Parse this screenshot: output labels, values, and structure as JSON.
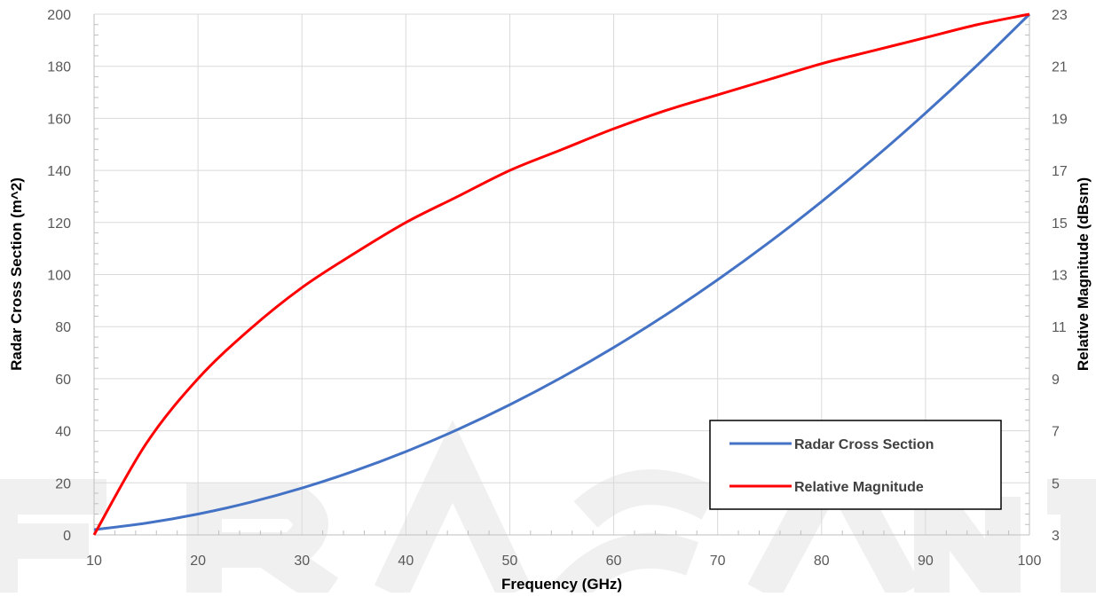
{
  "chart_data": {
    "type": "line",
    "xlabel": "Frequency (GHz)",
    "ylabel": "Radar Cross Section (m^2)",
    "y2label": "Relative Magnitude (dBsm)",
    "xlim": [
      10,
      100
    ],
    "ylim": [
      0,
      200
    ],
    "y2lim": [
      3,
      23
    ],
    "x_ticks": [
      10,
      20,
      30,
      40,
      50,
      60,
      70,
      80,
      90,
      100
    ],
    "y_ticks": [
      0,
      20,
      40,
      60,
      80,
      100,
      120,
      140,
      160,
      180,
      200
    ],
    "y2_ticks": [
      3,
      5,
      7,
      9,
      11,
      13,
      15,
      17,
      19,
      21,
      23
    ],
    "grid": true,
    "legend_position": "bottom-right",
    "x": [
      10,
      15,
      20,
      25,
      30,
      35,
      40,
      45,
      50,
      55,
      60,
      65,
      70,
      75,
      80,
      85,
      90,
      95,
      100
    ],
    "series": [
      {
        "name": "Radar Cross Section",
        "axis": "left",
        "color": "#4472c4",
        "values": [
          2,
          4.5,
          8,
          12.5,
          18,
          24.5,
          32,
          40.5,
          50,
          60.5,
          72,
          84.5,
          98,
          112.5,
          128,
          144.5,
          162,
          180.5,
          200
        ]
      },
      {
        "name": "Relative Magnitude",
        "axis": "right",
        "color": "#ff0000",
        "values": [
          3,
          6.5,
          9,
          10.9,
          12.5,
          13.8,
          15,
          16,
          17,
          17.8,
          18.6,
          19.3,
          19.9,
          20.5,
          21.1,
          21.6,
          22.1,
          22.6,
          23
        ]
      }
    ]
  }
}
